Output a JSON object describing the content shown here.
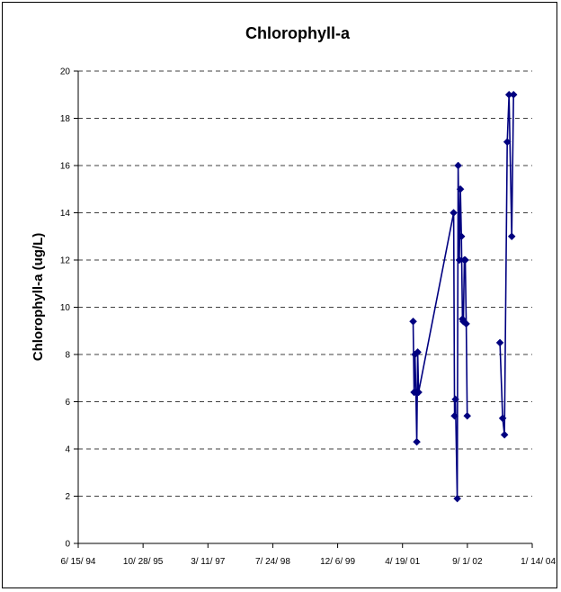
{
  "chart_data": {
    "type": "line",
    "title": "Chlorophyll-a",
    "ylabel": "Chlorophyll-a (ug/L)",
    "xlabel": "",
    "ylim": [
      0,
      20
    ],
    "y_ticks": [
      "0",
      "2",
      "4",
      "6",
      "8",
      "10",
      "12",
      "14",
      "16",
      "18",
      "20"
    ],
    "xlim": [
      "1994-06-15",
      "2004-01-14"
    ],
    "x_ticks": [
      {
        "date": "1994-06-15",
        "label": "6/ 15/ 94"
      },
      {
        "date": "1995-10-28",
        "label": "10/ 28/ 95"
      },
      {
        "date": "1997-03-11",
        "label": "3/ 11/ 97"
      },
      {
        "date": "1998-07-24",
        "label": "7/ 24/ 98"
      },
      {
        "date": "1999-12-06",
        "label": "12/ 6/ 99"
      },
      {
        "date": "2001-04-19",
        "label": "4/ 19/ 01"
      },
      {
        "date": "2002-09-01",
        "label": "9/ 1/ 02"
      },
      {
        "date": "2004-01-14",
        "label": "1/ 14/ 04"
      }
    ],
    "grid": {
      "horizontal": true,
      "style": "dashed"
    },
    "marker": "diamond",
    "color": "#000080",
    "series": [
      {
        "points": [
          {
            "x": "2001-07-10",
            "y": 9.4
          },
          {
            "x": "2001-07-17",
            "y": 6.4
          },
          {
            "x": "2001-07-24",
            "y": 8.0
          },
          {
            "x": "2001-07-31",
            "y": 6.4
          },
          {
            "x": "2001-08-07",
            "y": 4.3
          },
          {
            "x": "2001-08-14",
            "y": 8.1
          },
          {
            "x": "2001-08-21",
            "y": 6.4
          },
          {
            "x": "2002-05-18",
            "y": 14.0
          },
          {
            "x": "2002-05-25",
            "y": 5.4
          },
          {
            "x": "2002-06-01",
            "y": 6.1
          },
          {
            "x": "2002-06-15",
            "y": 1.9
          },
          {
            "x": "2002-06-22",
            "y": 16.0
          },
          {
            "x": "2002-07-01",
            "y": 12.0
          },
          {
            "x": "2002-07-09",
            "y": 15.0
          },
          {
            "x": "2002-07-17",
            "y": 13.0
          },
          {
            "x": "2002-07-25",
            "y": 9.5
          },
          {
            "x": "2002-08-01",
            "y": 9.4
          },
          {
            "x": "2002-08-09",
            "y": 12.0
          },
          {
            "x": "2002-08-16",
            "y": 12.0
          },
          {
            "x": "2002-08-23",
            "y": 9.3
          },
          {
            "x": "2002-08-31",
            "y": 5.4
          }
        ]
      },
      {
        "points": [
          {
            "x": "2003-05-10",
            "y": 8.5
          },
          {
            "x": "2003-05-31",
            "y": 5.3
          },
          {
            "x": "2003-06-14",
            "y": 4.6
          },
          {
            "x": "2003-07-05",
            "y": 17.0
          },
          {
            "x": "2003-07-19",
            "y": 19.0
          },
          {
            "x": "2003-08-09",
            "y": 13.0
          },
          {
            "x": "2003-08-23",
            "y": 19.0
          }
        ]
      }
    ]
  }
}
